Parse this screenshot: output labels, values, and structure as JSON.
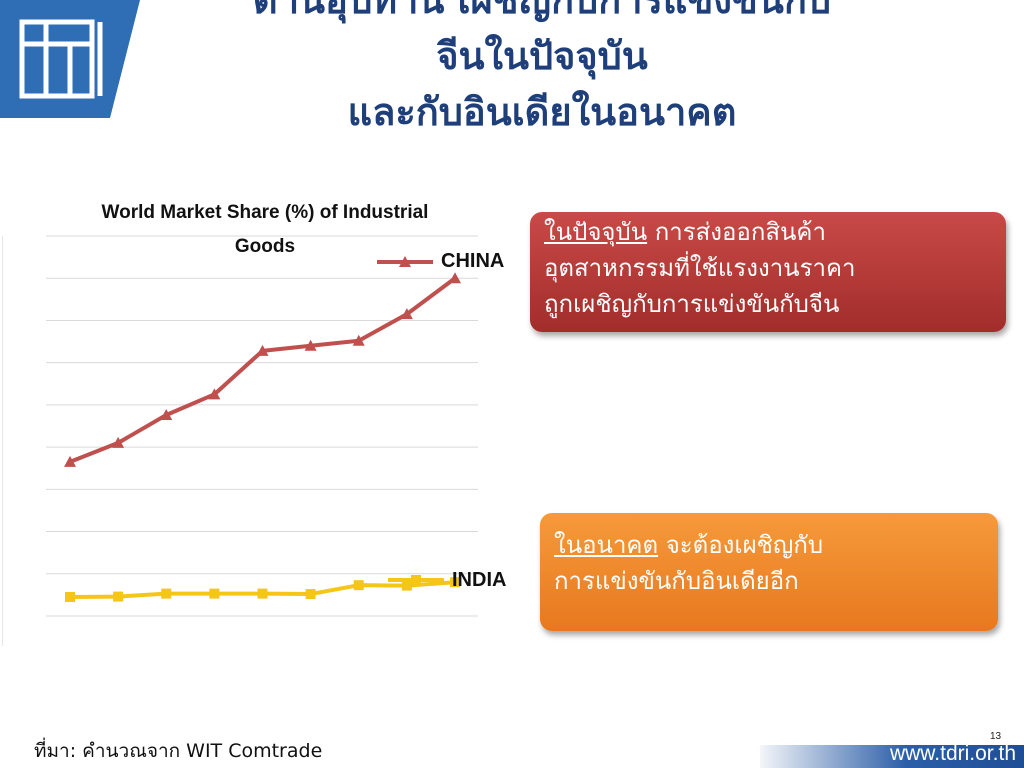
{
  "slide": {
    "title_lines": [
      "ด้านอุปทาน เผชิญกับการแข่งขันกับ",
      "จีนในปัจจุบัน",
      "และกับอินเดียในอนาคต"
    ],
    "page_number": "13",
    "source_text": "ที่มา: คำนวณจาก WIT Comtrade",
    "website": "www.tdri.or.th",
    "logo_icon": "tdri-logo-icon"
  },
  "callouts": {
    "present": {
      "underlined": "ในปัจจุบัน",
      "line1_rest": " การส่งออกสินค้า",
      "line2": "อุตสาหกรรมที่ใช้แรงงานราคา",
      "line3": "ถูกเผชิญกับการแข่งขันกับจีน",
      "color": "#b8393a"
    },
    "future": {
      "underlined": "ในอนาคต",
      "line1_rest": " จะต้องเผชิญกับ",
      "line2": "การแข่งขันกับอินเดียอีก",
      "color": "#f08a2c"
    }
  },
  "chart_data": {
    "type": "line",
    "title": "World Market Share (%) of Industrial Goods",
    "xlabel": "",
    "ylabel": "",
    "grid": true,
    "x": [
      1,
      2,
      3,
      4,
      5,
      6,
      7,
      8,
      9
    ],
    "series": [
      {
        "name": "CHINA",
        "color": "#c0504d",
        "marker": "triangle",
        "values": [
          36.5,
          41.0,
          47.6,
          52.5,
          62.8,
          64.0,
          65.2,
          71.5,
          80.0
        ]
      },
      {
        "name": "INDIA",
        "color": "#f5c518",
        "marker": "square",
        "values": [
          4.5,
          4.6,
          5.3,
          5.3,
          5.3,
          5.2,
          7.3,
          7.2,
          8.0
        ]
      }
    ],
    "ylim": [
      0,
      90
    ],
    "legend": "at end of lines"
  }
}
